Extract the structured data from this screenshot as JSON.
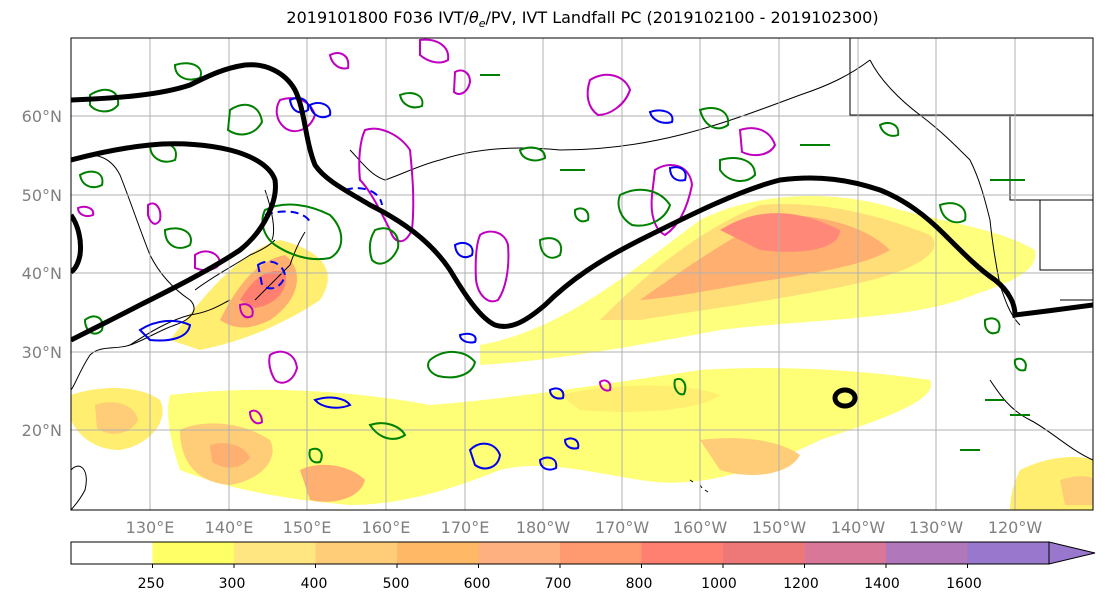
{
  "title_main": "2019101800 F036 IVT/",
  "title_theta": "θ",
  "title_sub": "e",
  "title_rest": "/PV, IVT Landfall PC (2019102100 - 2019102300)",
  "map": {
    "lat_labels": [
      "60°N",
      "50°N",
      "40°N",
      "30°N",
      "20°N"
    ],
    "lon_labels": [
      "130°E",
      "140°E",
      "150°E",
      "160°E",
      "170°E",
      "180°W",
      "170°W",
      "160°W",
      "150°W",
      "140°W",
      "130°W",
      "120°W"
    ]
  },
  "colorbar": {
    "ticks": [
      "250",
      "300",
      "400",
      "500",
      "600",
      "700",
      "800",
      "1000",
      "1200",
      "1400",
      "1600"
    ],
    "colors": [
      "#ffffff",
      "#ffff66",
      "#ffe680",
      "#ffcc77",
      "#ffb866",
      "#ffb080",
      "#ff9970",
      "#ff8070",
      "#ee7777",
      "#d97799",
      "#b077bb",
      "#9977cc",
      "#9977cc"
    ]
  }
}
